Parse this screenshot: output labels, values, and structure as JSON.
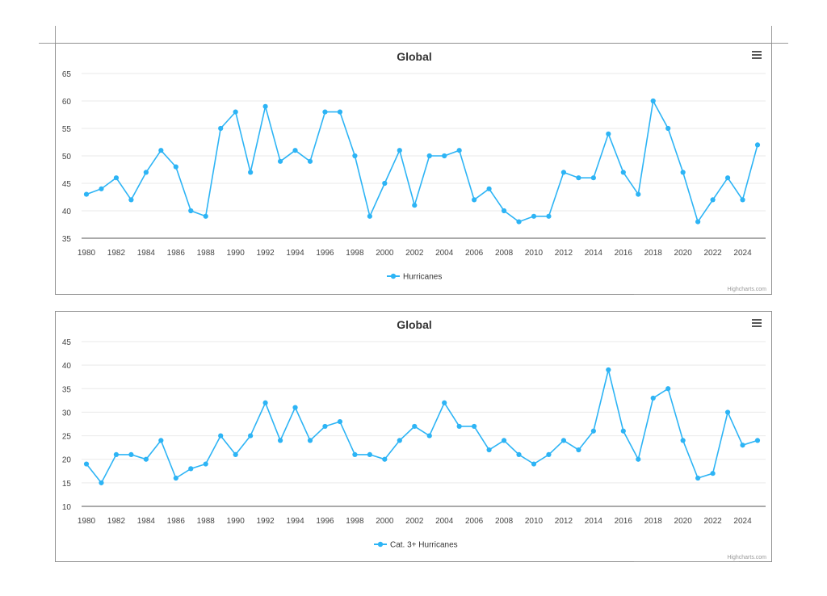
{
  "colors": {
    "series": "#2db4f5",
    "accent_icon": "#555555"
  },
  "chart_data": [
    {
      "type": "line",
      "title": "Global",
      "xlabel": "",
      "ylabel": "",
      "ylim": [
        35,
        65
      ],
      "yticks": [
        35,
        40,
        45,
        50,
        55,
        60,
        65
      ],
      "xlim": [
        1980,
        2025
      ],
      "xticks": [
        1980,
        1982,
        1984,
        1986,
        1988,
        1990,
        1992,
        1994,
        1996,
        1998,
        2000,
        2002,
        2004,
        2006,
        2008,
        2010,
        2012,
        2014,
        2016,
        2018,
        2020,
        2022,
        2024
      ],
      "grid": true,
      "legend": "bottom-center",
      "credit": "Highcharts.com",
      "x": [
        1980,
        1981,
        1982,
        1983,
        1984,
        1985,
        1986,
        1987,
        1988,
        1989,
        1990,
        1991,
        1992,
        1993,
        1994,
        1995,
        1996,
        1997,
        1998,
        1999,
        2000,
        2001,
        2002,
        2003,
        2004,
        2005,
        2006,
        2007,
        2008,
        2009,
        2010,
        2011,
        2012,
        2013,
        2014,
        2015,
        2016,
        2017,
        2018,
        2019,
        2020,
        2021,
        2022,
        2023,
        2024,
        2025
      ],
      "series": [
        {
          "name": "Hurricanes",
          "values": [
            43,
            44,
            46,
            42,
            47,
            51,
            48,
            40,
            39,
            55,
            58,
            47,
            59,
            49,
            51,
            49,
            58,
            58,
            50,
            39,
            45,
            51,
            41,
            50,
            50,
            51,
            42,
            44,
            40,
            38,
            39,
            39,
            47,
            46,
            46,
            54,
            47,
            43,
            60,
            55,
            47,
            38,
            42,
            46,
            42,
            52
          ]
        }
      ]
    },
    {
      "type": "line",
      "title": "Global",
      "xlabel": "",
      "ylabel": "",
      "ylim": [
        10,
        45
      ],
      "yticks": [
        10,
        15,
        20,
        25,
        30,
        35,
        40,
        45
      ],
      "xlim": [
        1980,
        2025
      ],
      "xticks": [
        1980,
        1982,
        1984,
        1986,
        1988,
        1990,
        1992,
        1994,
        1996,
        1998,
        2000,
        2002,
        2004,
        2006,
        2008,
        2010,
        2012,
        2014,
        2016,
        2018,
        2020,
        2022,
        2024
      ],
      "grid": true,
      "legend": "bottom-center",
      "credit": "Highcharts.com",
      "x": [
        1980,
        1981,
        1982,
        1983,
        1984,
        1985,
        1986,
        1987,
        1988,
        1989,
        1990,
        1991,
        1992,
        1993,
        1994,
        1995,
        1996,
        1997,
        1998,
        1999,
        2000,
        2001,
        2002,
        2003,
        2004,
        2005,
        2006,
        2007,
        2008,
        2009,
        2010,
        2011,
        2012,
        2013,
        2014,
        2015,
        2016,
        2017,
        2018,
        2019,
        2020,
        2021,
        2022,
        2023,
        2024,
        2025
      ],
      "series": [
        {
          "name": "Cat. 3+ Hurricanes",
          "values": [
            19,
            15,
            21,
            21,
            20,
            24,
            16,
            18,
            19,
            25,
            21,
            25,
            32,
            24,
            31,
            24,
            27,
            28,
            21,
            21,
            20,
            24,
            27,
            25,
            32,
            27,
            27,
            22,
            24,
            21,
            19,
            21,
            24,
            22,
            26,
            39,
            26,
            20,
            33,
            35,
            24,
            16,
            17,
            30,
            23,
            24
          ]
        }
      ]
    }
  ]
}
